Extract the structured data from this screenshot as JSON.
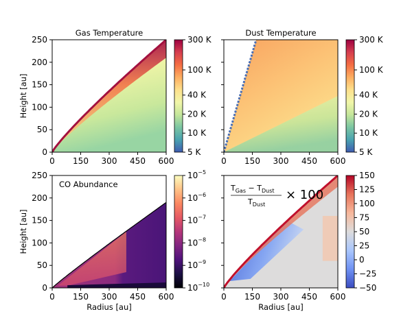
{
  "chart_data": [
    {
      "type": "heatmap",
      "title": "Gas Temperature",
      "xlabel": "",
      "ylabel": "Height [au]",
      "xlim": [
        0,
        600
      ],
      "ylim": [
        0,
        250
      ],
      "xticks": [
        "0",
        "150",
        "300",
        "450",
        "600"
      ],
      "yticks": [
        "0",
        "50",
        "100",
        "150",
        "200",
        "250"
      ],
      "colorbar": {
        "scale": "log",
        "range": [
          5,
          300
        ],
        "ticks": [
          {
            "value": 5,
            "label": "5 K"
          },
          {
            "value": 10,
            "label": "10 K"
          },
          {
            "value": 20,
            "label": "20 K"
          },
          {
            "value": 40,
            "label": "40 K"
          },
          {
            "value": 100,
            "label": "100 K"
          },
          {
            "value": 300,
            "label": "300 K"
          }
        ],
        "colormap": [
          "#3f5bb0",
          "#4aa3b0",
          "#7cc6a2",
          "#c5e69b",
          "#f1f6a9",
          "#fde08c",
          "#fdae61",
          "#f46d43",
          "#d53e4f",
          "#9e0142"
        ]
      }
    },
    {
      "type": "heatmap",
      "title": "Dust Temperature",
      "xlabel": "",
      "ylabel": "",
      "xlim": [
        0,
        600
      ],
      "ylim": [
        0,
        250
      ],
      "xticks": [
        "0",
        "150",
        "300",
        "450",
        "600"
      ],
      "yticks": [],
      "colorbar": {
        "scale": "log",
        "range": [
          5,
          300
        ],
        "ticks": [
          {
            "value": 5,
            "label": "5 K"
          },
          {
            "value": 10,
            "label": "10 K"
          },
          {
            "value": 20,
            "label": "20 K"
          },
          {
            "value": 40,
            "label": "40 K"
          },
          {
            "value": 100,
            "label": "100 K"
          },
          {
            "value": 300,
            "label": "300 K"
          }
        ],
        "colormap": [
          "#3f5bb0",
          "#4aa3b0",
          "#7cc6a2",
          "#c5e69b",
          "#f1f6a9",
          "#fde08c",
          "#fdae61",
          "#f46d43",
          "#d53e4f",
          "#9e0142"
        ]
      }
    },
    {
      "type": "heatmap",
      "title": "CO Abundance",
      "xlabel": "Radius [au]",
      "ylabel": "Height [au]",
      "xlim": [
        0,
        600
      ],
      "ylim": [
        0,
        250
      ],
      "xticks": [
        "0",
        "150",
        "300",
        "450",
        "600"
      ],
      "yticks": [
        "0",
        "50",
        "100",
        "150",
        "200",
        "250"
      ],
      "colorbar": {
        "scale": "log",
        "range": [
          1e-10,
          1e-05
        ],
        "ticks": [
          {
            "value": 1e-10,
            "base": "10",
            "exp": "−10"
          },
          {
            "value": 1e-09,
            "base": "10",
            "exp": "−9"
          },
          {
            "value": 1e-08,
            "base": "10",
            "exp": "−8"
          },
          {
            "value": 1e-07,
            "base": "10",
            "exp": "−7"
          },
          {
            "value": 1e-06,
            "base": "10",
            "exp": "−6"
          },
          {
            "value": 1e-05,
            "base": "10",
            "exp": "−5"
          }
        ],
        "colormap": [
          "#000004",
          "#1c1044",
          "#4f127b",
          "#812581",
          "#b5367a",
          "#e55964",
          "#fb8761",
          "#fec287",
          "#fcfdbf"
        ]
      }
    },
    {
      "type": "heatmap",
      "title": "",
      "xlabel": "Radius [au]",
      "ylabel": "",
      "xlim": [
        0,
        600
      ],
      "ylim": [
        0,
        250
      ],
      "xticks": [
        "0",
        "150",
        "300",
        "450",
        "600"
      ],
      "yticks": [],
      "annotation": {
        "numerator_left": "T",
        "numerator_left_sub": "Gas",
        "minus": "−",
        "numerator_right": "T",
        "numerator_right_sub": "Dust",
        "denominator": "T",
        "denominator_sub": "Dust",
        "multiplier": "× 100"
      },
      "colorbar": {
        "scale": "linear",
        "range": [
          -50,
          150
        ],
        "ticks": [
          {
            "value": -50,
            "label": "−50"
          },
          {
            "value": -25,
            "label": "−25"
          },
          {
            "value": 0,
            "label": "0"
          },
          {
            "value": 25,
            "label": "25"
          },
          {
            "value": 50,
            "label": "50"
          },
          {
            "value": 75,
            "label": "75"
          },
          {
            "value": 100,
            "label": "100"
          },
          {
            "value": 125,
            "label": "125"
          },
          {
            "value": 150,
            "label": "150"
          }
        ],
        "colormap": [
          "#3b4cc0",
          "#6f92f3",
          "#aac7fd",
          "#dddcdc",
          "#f7b89c",
          "#e7745b",
          "#b40426"
        ]
      }
    }
  ]
}
